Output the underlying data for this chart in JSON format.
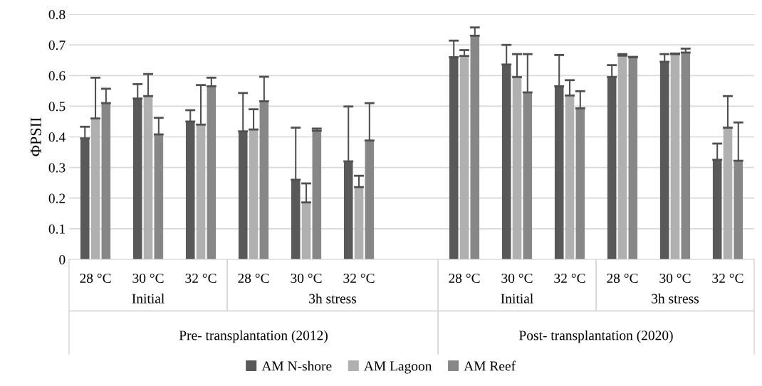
{
  "chart_data": {
    "type": "bar",
    "ylabel": "ΦPSII",
    "categories": [
      "28 °C",
      "30 °C",
      "32 °C",
      "28 °C",
      "30 °C",
      "32 °C",
      null,
      "28 °C",
      "30 °C",
      "32 °C",
      "28 °C",
      "30 °C",
      "32 °C"
    ],
    "series": [
      {
        "name": "AM N-shore",
        "color": "#595959",
        "values": [
          0.395,
          0.525,
          0.45,
          0.418,
          0.26,
          0.32,
          null,
          0.66,
          0.636,
          0.565,
          0.595,
          0.645,
          0.325
        ],
        "errors": [
          [
            0.395,
            0.433
          ],
          [
            0.525,
            0.572
          ],
          [
            0.45,
            0.487
          ],
          [
            0.418,
            0.543
          ],
          [
            0.26,
            0.43
          ],
          [
            0.32,
            0.499
          ],
          null,
          [
            0.66,
            0.714
          ],
          [
            0.636,
            0.7
          ],
          [
            0.565,
            0.667
          ],
          [
            0.595,
            0.634
          ],
          [
            0.645,
            0.67
          ],
          [
            0.325,
            0.378
          ]
        ]
      },
      {
        "name": "AM Lagoon",
        "color": "#b0b0b0",
        "values": [
          0.46,
          0.533,
          0.44,
          0.424,
          0.186,
          0.236,
          null,
          0.664,
          0.595,
          0.535,
          0.665,
          0.67,
          0.43
        ],
        "errors": [
          [
            0.46,
            0.593
          ],
          [
            0.533,
            0.605
          ],
          [
            0.44,
            0.569
          ],
          [
            0.424,
            0.49
          ],
          [
            0.186,
            0.248
          ],
          [
            0.236,
            0.273
          ],
          null,
          [
            0.664,
            0.683
          ],
          [
            0.595,
            0.67
          ],
          [
            0.535,
            0.585
          ],
          [
            0.665,
            0.67
          ],
          [
            0.67,
            0.672
          ],
          [
            0.43,
            0.533
          ]
        ]
      },
      {
        "name": "AM Reef",
        "color": "#878787",
        "values": [
          0.51,
          0.408,
          0.565,
          0.516,
          0.42,
          0.388,
          null,
          0.73,
          0.545,
          0.493,
          0.66,
          0.675,
          0.322
        ],
        "errors": [
          [
            0.51,
            0.557
          ],
          [
            0.408,
            0.462
          ],
          [
            0.565,
            0.593
          ],
          [
            0.516,
            0.596
          ],
          [
            0.42,
            0.427
          ],
          [
            0.388,
            0.51
          ],
          null,
          [
            0.73,
            0.757
          ],
          [
            0.545,
            0.67
          ],
          [
            0.493,
            0.549
          ],
          [
            0.66,
            0.661
          ],
          [
            0.675,
            0.688
          ],
          [
            0.322,
            0.447
          ]
        ]
      }
    ],
    "annotations": [
      "Initial",
      "3h stress",
      "Initial",
      "3h stress",
      "Pre- transplantation (2012)",
      "Post- transplantation (2020)"
    ],
    "ylim": [
      0,
      0.8
    ],
    "yticks": [
      0,
      0.1,
      0.2,
      0.3,
      0.4,
      0.5,
      0.6,
      0.7,
      0.8
    ],
    "grid": "y",
    "legend": "bottom"
  }
}
